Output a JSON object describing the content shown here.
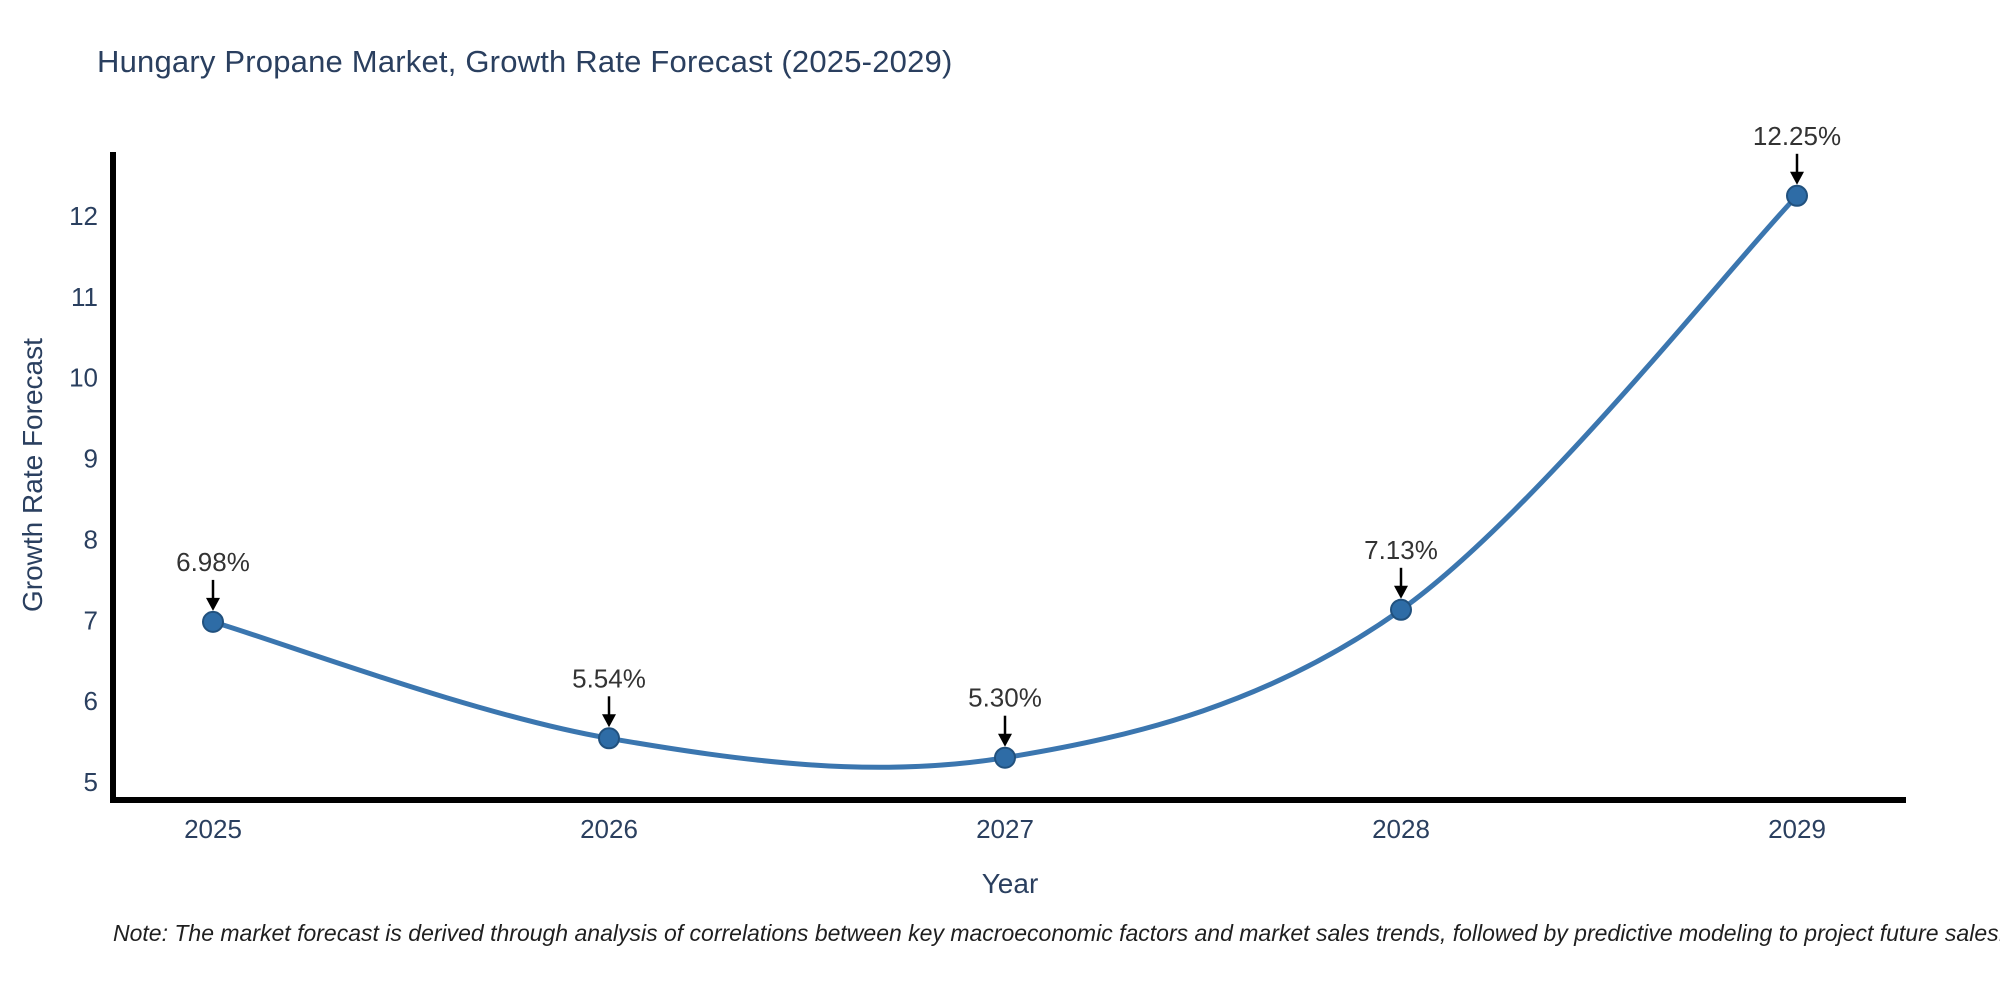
{
  "page": {
    "note": "Note: The market forecast is derived through analysis of correlations between key macroeconomic factors and market sales trends, followed by predictive modeling to project future sales."
  },
  "chart_data": {
    "type": "line",
    "title": "Hungary Propane Market, Growth Rate Forecast (2025-2029)",
    "xlabel": "Year",
    "ylabel": "Growth Rate Forecast",
    "categories": [
      "2025",
      "2026",
      "2027",
      "2028",
      "2029"
    ],
    "series": [
      {
        "name": "Growth Rate Forecast",
        "values": [
          6.98,
          5.54,
          5.3,
          7.13,
          12.25
        ]
      }
    ],
    "point_labels": [
      "6.98%",
      "5.54%",
      "5.30%",
      "7.13%",
      "12.25%"
    ],
    "yticks": [
      5,
      6,
      7,
      8,
      9,
      10,
      11,
      12
    ],
    "ylim": [
      4.8,
      12.75
    ],
    "line_shape": "spline",
    "markers": true,
    "grid": false,
    "legend": "none",
    "annotation_arrows": "black arrow pointing down to each data point",
    "colors": {
      "line": "#3b76af",
      "marker_fill": "#2e6ca6",
      "marker_edge": "#21517e",
      "axis_line": "#000000",
      "title_text": "#2a3f5f",
      "tick_text": "#2a3f5f",
      "annotation_text": "#333333",
      "note_text": "#1f1f1f",
      "background": "#ffffff"
    }
  }
}
